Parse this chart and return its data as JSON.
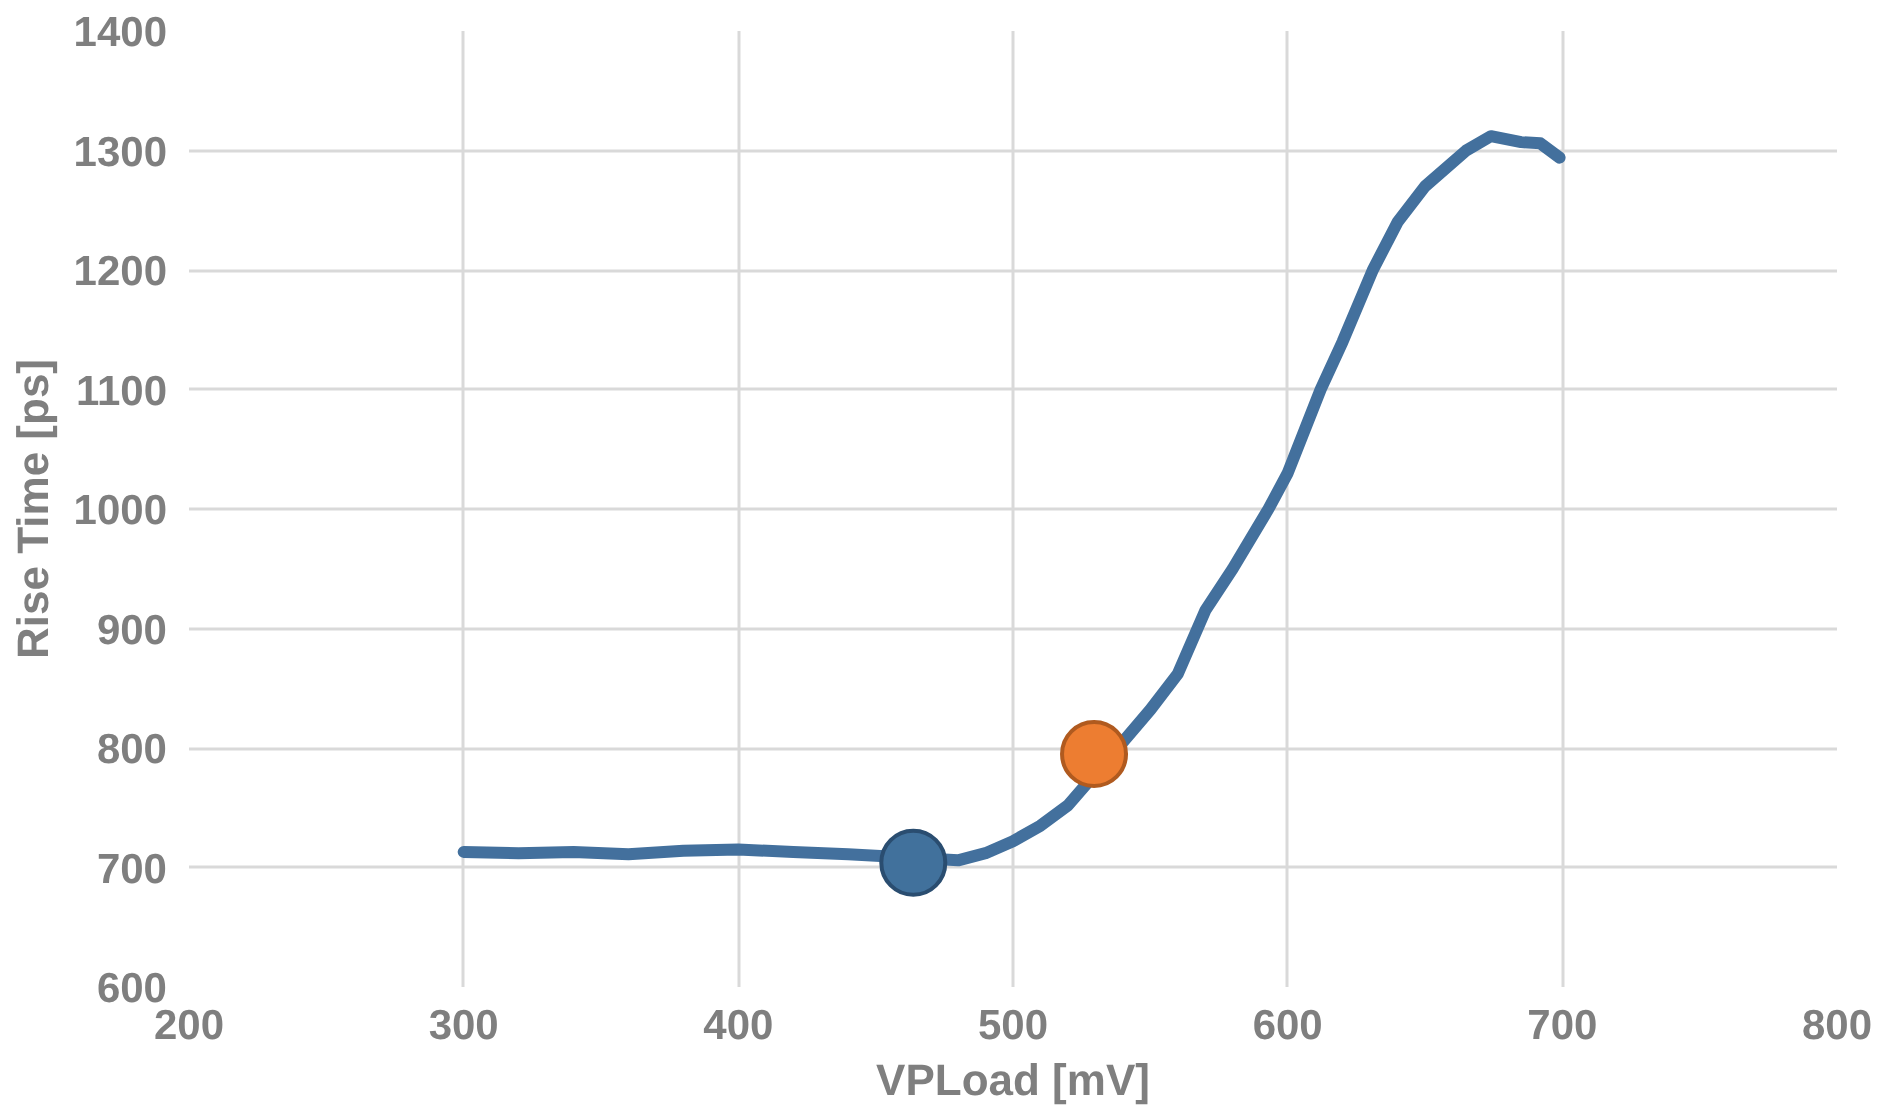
{
  "chart_data": {
    "type": "line",
    "xlabel": "VPLoad [mV]",
    "ylabel": "Rise Time [ps]",
    "xlim": [
      200,
      800
    ],
    "xticks": [
      200,
      300,
      400,
      500,
      600,
      700,
      800
    ],
    "ylim": [
      600,
      1400
    ],
    "yticks": [
      600,
      700,
      800,
      900,
      1000,
      1100,
      1200,
      1300,
      1400
    ],
    "grid": true,
    "series": [
      {
        "color": "#43709d",
        "x": [
          300,
          320,
          340,
          360,
          380,
          400,
          420,
          440,
          480,
          490,
          500,
          510,
          520,
          540,
          550,
          560,
          570,
          580,
          593,
          600,
          612,
          620,
          631,
          640,
          650,
          665,
          674,
          685,
          692,
          699
        ],
        "values": [
          713,
          712,
          713,
          711,
          714,
          715,
          713,
          711,
          706,
          712,
          722,
          735,
          752,
          805,
          832,
          862,
          915,
          950,
          1000,
          1030,
          1100,
          1140,
          1200,
          1240,
          1270,
          1300,
          1312,
          1307,
          1306,
          1294
        ]
      },
      {
        "type": "scatter",
        "color": "#41719c",
        "x": [
          463.7
        ],
        "values": [
          704
        ]
      },
      {
        "type": "scatter",
        "color": "#ed7d31",
        "x": [
          529.5
        ],
        "values": [
          795
        ]
      }
    ]
  }
}
